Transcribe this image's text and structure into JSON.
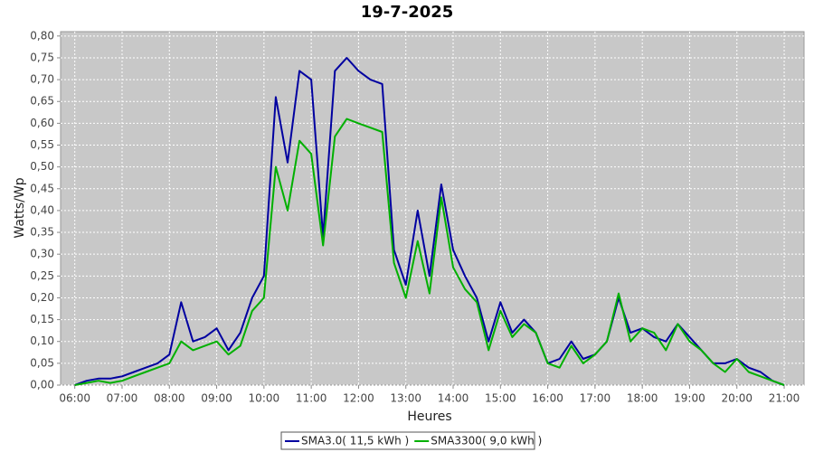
{
  "chart_data": {
    "type": "line",
    "title": "19-7-2025",
    "x_label": "Heures",
    "y_label": "Watts/Wp",
    "x": [
      6.0,
      6.25,
      6.5,
      6.75,
      7.0,
      7.25,
      7.5,
      7.75,
      8.0,
      8.25,
      8.5,
      8.75,
      9.0,
      9.25,
      9.5,
      9.75,
      10.0,
      10.25,
      10.5,
      10.75,
      11.0,
      11.25,
      11.5,
      11.75,
      12.0,
      12.25,
      12.5,
      12.75,
      13.0,
      13.25,
      13.5,
      13.75,
      14.0,
      14.25,
      14.5,
      14.75,
      15.0,
      15.25,
      15.5,
      15.75,
      16.0,
      16.25,
      16.5,
      16.75,
      17.0,
      17.25,
      17.5,
      17.75,
      18.0,
      18.25,
      18.5,
      18.75,
      19.0,
      19.25,
      19.5,
      19.75,
      20.0,
      20.25,
      20.5,
      20.75,
      21.0
    ],
    "series": [
      {
        "name": "SMA3.0( 11,5 kWh )",
        "color": "#0000a0",
        "values": [
          0.0,
          0.01,
          0.015,
          0.015,
          0.02,
          0.03,
          0.04,
          0.05,
          0.07,
          0.19,
          0.1,
          0.11,
          0.13,
          0.08,
          0.12,
          0.2,
          0.25,
          0.66,
          0.51,
          0.72,
          0.7,
          0.34,
          0.72,
          0.75,
          0.72,
          0.7,
          0.69,
          0.31,
          0.23,
          0.4,
          0.25,
          0.46,
          0.31,
          0.25,
          0.2,
          0.1,
          0.19,
          0.12,
          0.15,
          0.12,
          0.05,
          0.06,
          0.1,
          0.06,
          0.07,
          0.1,
          0.2,
          0.12,
          0.13,
          0.11,
          0.1,
          0.14,
          0.11,
          0.08,
          0.05,
          0.05,
          0.06,
          0.04,
          0.03,
          0.01,
          0.0
        ]
      },
      {
        "name": "SMA3300( 9,0 kWh )",
        "color": "#00b000",
        "values": [
          0.0,
          0.005,
          0.01,
          0.005,
          0.01,
          0.02,
          0.03,
          0.04,
          0.05,
          0.1,
          0.08,
          0.09,
          0.1,
          0.07,
          0.09,
          0.17,
          0.2,
          0.5,
          0.4,
          0.56,
          0.53,
          0.32,
          0.57,
          0.61,
          0.6,
          0.59,
          0.58,
          0.28,
          0.2,
          0.33,
          0.21,
          0.43,
          0.27,
          0.22,
          0.19,
          0.08,
          0.17,
          0.11,
          0.14,
          0.12,
          0.05,
          0.04,
          0.09,
          0.05,
          0.07,
          0.1,
          0.21,
          0.1,
          0.13,
          0.12,
          0.08,
          0.14,
          0.1,
          0.08,
          0.05,
          0.03,
          0.06,
          0.03,
          0.02,
          0.01,
          0.0
        ]
      }
    ],
    "xlim": [
      5.7,
      21.42
    ],
    "xticks": [
      {
        "value": 6,
        "label": "06:00"
      },
      {
        "value": 7,
        "label": "07:00"
      },
      {
        "value": 8,
        "label": "08:00"
      },
      {
        "value": 9,
        "label": "09:00"
      },
      {
        "value": 10,
        "label": "10:00"
      },
      {
        "value": 11,
        "label": "11:00"
      },
      {
        "value": 12,
        "label": "12:00"
      },
      {
        "value": 13,
        "label": "13:00"
      },
      {
        "value": 14,
        "label": "14:00"
      },
      {
        "value": 15,
        "label": "15:00"
      },
      {
        "value": 16,
        "label": "16:00"
      },
      {
        "value": 17,
        "label": "17:00"
      },
      {
        "value": 18,
        "label": "18:00"
      },
      {
        "value": 19,
        "label": "19:00"
      },
      {
        "value": 20,
        "label": "20:00"
      },
      {
        "value": 21,
        "label": "21:00"
      }
    ],
    "ylim": [
      0,
      0.81
    ],
    "yticks": [
      {
        "value": 0,
        "label": "0,00"
      },
      {
        "value": 0.05,
        "label": "0,05"
      },
      {
        "value": 0.1,
        "label": "0,10"
      },
      {
        "value": 0.15,
        "label": "0,15"
      },
      {
        "value": 0.2,
        "label": "0,20"
      },
      {
        "value": 0.25,
        "label": "0,25"
      },
      {
        "value": 0.3,
        "label": "0,30"
      },
      {
        "value": 0.35,
        "label": "0,35"
      },
      {
        "value": 0.4,
        "label": "0,40"
      },
      {
        "value": 0.45,
        "label": "0,45"
      },
      {
        "value": 0.5,
        "label": "0,50"
      },
      {
        "value": 0.55,
        "label": "0,55"
      },
      {
        "value": 0.6,
        "label": "0,60"
      },
      {
        "value": 0.65,
        "label": "0,65"
      },
      {
        "value": 0.7,
        "label": "0,70"
      },
      {
        "value": 0.75,
        "label": "0,75"
      },
      {
        "value": 0.8,
        "label": "0,80"
      }
    ],
    "grid": true
  }
}
